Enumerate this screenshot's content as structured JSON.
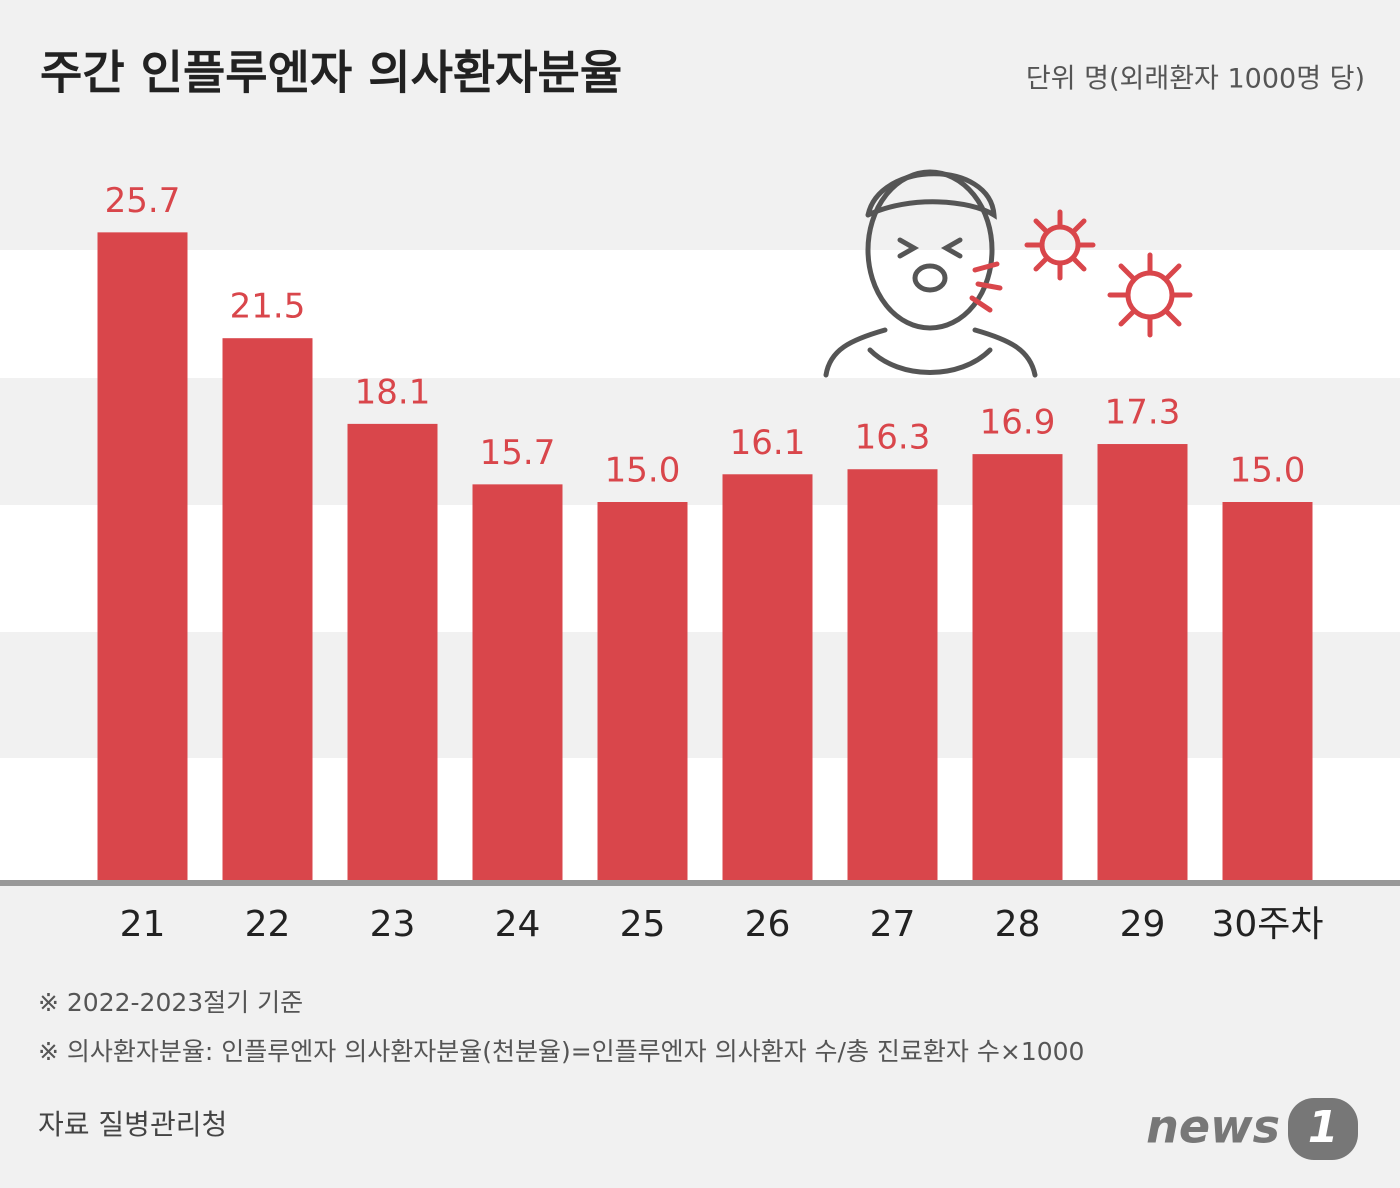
{
  "chart_data": {
    "type": "bar",
    "title": "주간 인플루엔자 의사환자분율",
    "unit": "단위 명(외래환자 1000명 당)",
    "categories": [
      "21",
      "22",
      "23",
      "24",
      "25",
      "26",
      "27",
      "28",
      "29",
      "30주차"
    ],
    "values": [
      25.7,
      21.5,
      18.1,
      15.7,
      15.0,
      16.1,
      16.3,
      16.9,
      17.3,
      15.0
    ],
    "value_labels": [
      "25.7",
      "21.5",
      "18.1",
      "15.7",
      "15.0",
      "16.1",
      "16.3",
      "16.9",
      "17.3",
      "15.0"
    ],
    "color": "#d9464b",
    "ylim": [
      0,
      30
    ],
    "notes": [
      "※ 2022-2023절기 기준",
      "※ 의사환자분율: 인플루엔자 의사환자분율(천분율)=인플루엔자 의사환자 수/총 진료환자 수×1000"
    ],
    "source": "자료 질병관리청",
    "logo": "news",
    "logo_badge": "1"
  }
}
